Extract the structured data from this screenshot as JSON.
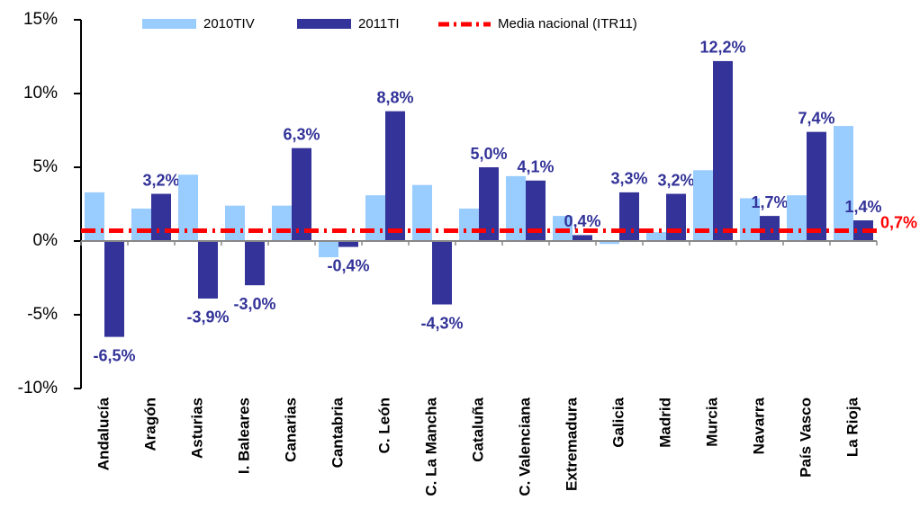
{
  "chart_data": {
    "type": "bar",
    "categories": [
      "Andalucía",
      "Aragón",
      "Asturias",
      "I. Baleares",
      "Canarias",
      "Cantabria",
      "C. León",
      "C. La Mancha",
      "Cataluña",
      "C. Valenciana",
      "Extremadura",
      "Galicia",
      "Madrid",
      "Murcia",
      "Navarra",
      "País Vasco",
      "La Rioja"
    ],
    "series": [
      {
        "name": "2010TIV",
        "color": "#99ccff",
        "values": [
          3.3,
          2.2,
          4.5,
          2.4,
          2.4,
          -1.1,
          3.1,
          3.8,
          2.2,
          4.4,
          1.7,
          -0.2,
          0.6,
          4.8,
          2.9,
          3.1,
          7.8
        ]
      },
      {
        "name": "2011TI",
        "color": "#333399",
        "values": [
          -6.5,
          3.2,
          -3.9,
          -3.0,
          6.3,
          -0.4,
          8.8,
          -4.3,
          5.0,
          4.1,
          0.4,
          3.3,
          3.2,
          12.2,
          1.7,
          7.4,
          1.4
        ],
        "value_labels": [
          "-6,5%",
          "3,2%",
          "-3,9%",
          "-3,0%",
          "6,3%",
          "-0,4%",
          "8,8%",
          "-4,3%",
          "5,0%",
          "4,1%",
          "0,4%",
          "3,3%",
          "3,2%",
          "12,2%",
          "1,7%",
          "7,4%",
          "1,4%"
        ]
      }
    ],
    "reference_line": {
      "name": "Media nacional (ITR11)",
      "value": 0.7,
      "value_label": "0,7%",
      "color": "#ff0000"
    },
    "ylim": [
      -10,
      15
    ],
    "yticks": [
      {
        "value": -10,
        "label": "-10%"
      },
      {
        "value": -5,
        "label": "-5%"
      },
      {
        "value": 0,
        "label": "0%"
      },
      {
        "value": 5,
        "label": "5%"
      },
      {
        "value": 10,
        "label": "10%"
      },
      {
        "value": 15,
        "label": "15%"
      }
    ],
    "grid": false,
    "legend": "top"
  }
}
